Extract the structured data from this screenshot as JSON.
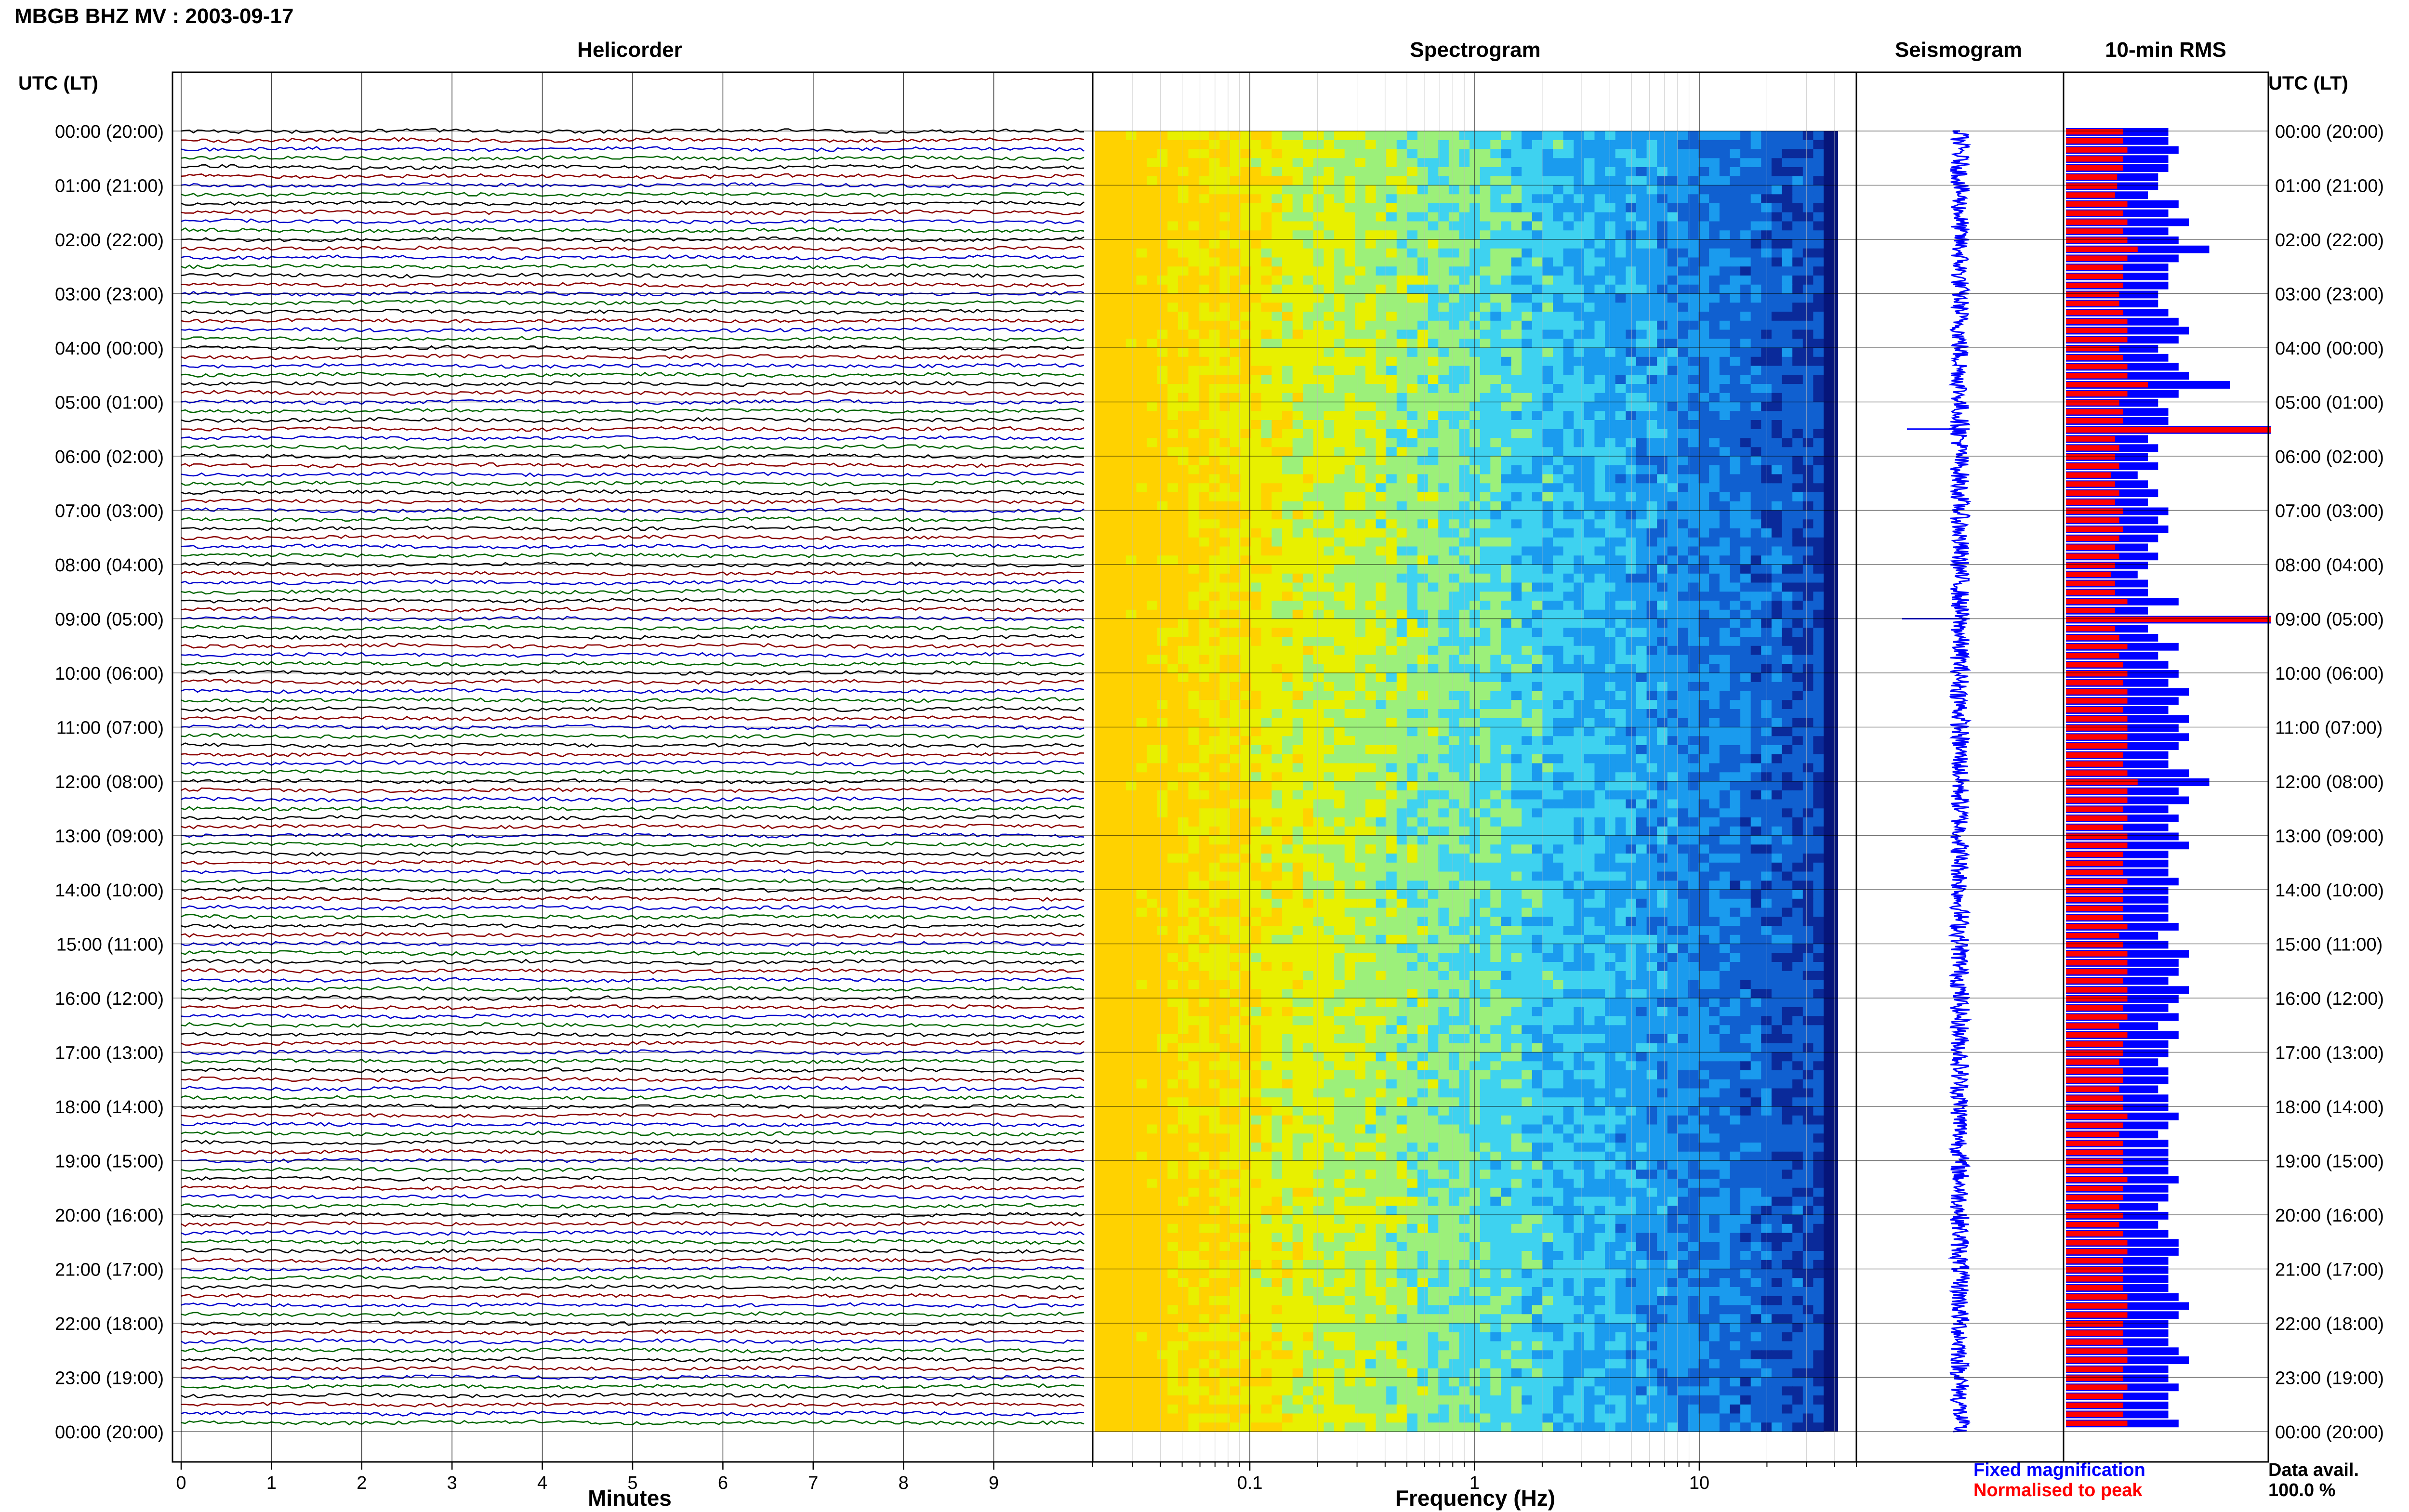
{
  "header": {
    "title": "MBGB BHZ MV : 2003-09-17",
    "time_axis_label": "UTC (LT)"
  },
  "panels": {
    "helicorder": "Helicorder",
    "spectrogram": "Spectrogram",
    "seismogram": "Seismogram",
    "rms": "10-min RMS"
  },
  "axis_labels": {
    "helicorder_x": "Minutes",
    "spectrogram_x": "Frequency (Hz)"
  },
  "legend": {
    "fixed_magnification": "Fixed magnification",
    "normalised_to_peak": "Normalised to peak",
    "data_avail_label": "Data avail.",
    "data_avail_value": "100.0 %"
  },
  "colors": {
    "helicorder_traces": [
      "#000000",
      "#8b0000",
      "#0000cc",
      "#006600"
    ],
    "fixed_magnification": "#0000ff",
    "normalised_to_peak": "#ff0000",
    "grid": "#000000",
    "spectrogram_colormap": [
      "#ffd200",
      "#e8f000",
      "#9cf07a",
      "#3ed2f0",
      "#1a9bee",
      "#1060d0",
      "#0a2a9a"
    ]
  },
  "chart_data": [
    {
      "type": "line",
      "name": "Helicorder",
      "title": "Helicorder",
      "xlabel": "Minutes",
      "xlim": [
        0,
        10
      ],
      "x_ticks": [
        "0",
        "1",
        "2",
        "3",
        "4",
        "5",
        "6",
        "7",
        "8",
        "9"
      ],
      "y_ticks": [
        "00:00 (20:00)",
        "01:00 (21:00)",
        "02:00 (22:00)",
        "03:00 (23:00)",
        "04:00 (00:00)",
        "05:00 (01:00)",
        "06:00 (02:00)",
        "07:00 (03:00)",
        "08:00 (04:00)",
        "09:00 (05:00)",
        "10:00 (06:00)",
        "11:00 (07:00)",
        "12:00 (08:00)",
        "13:00 (09:00)",
        "14:00 (10:00)",
        "15:00 (11:00)",
        "16:00 (12:00)",
        "17:00 (13:00)",
        "18:00 (14:00)",
        "19:00 (15:00)",
        "20:00 (16:00)",
        "21:00 (17:00)",
        "22:00 (18:00)",
        "23:00 (19:00)",
        "00:00 (20:00)"
      ],
      "traces_per_hour": 6,
      "trace_minutes": 10,
      "total_traces": 144,
      "grid": true
    },
    {
      "type": "heatmap",
      "name": "Spectrogram",
      "title": "Spectrogram",
      "xlabel": "Frequency (Hz)",
      "x_scale": "log",
      "xlim": [
        0.02,
        50
      ],
      "x_ticks": [
        "0.1",
        "1",
        "10"
      ],
      "x_tick_values": [
        0.1,
        1,
        10
      ],
      "rows": 144,
      "grid": true
    },
    {
      "type": "line",
      "name": "Seismogram",
      "title": "Seismogram",
      "orientation": "vertical",
      "grid": true
    },
    {
      "type": "bar",
      "name": "10-min RMS",
      "title": "10-min RMS",
      "orientation": "horizontal",
      "categories_count": 144,
      "series": [
        {
          "name": "Fixed magnification",
          "color": "#0000ff",
          "values": [
            0.5,
            0.5,
            0.55,
            0.5,
            0.5,
            0.45,
            0.45,
            0.4,
            0.55,
            0.5,
            0.6,
            0.5,
            0.55,
            0.7,
            0.55,
            0.5,
            0.5,
            0.5,
            0.45,
            0.45,
            0.5,
            0.55,
            0.6,
            0.55,
            0.45,
            0.5,
            0.55,
            0.6,
            0.8,
            0.55,
            0.45,
            0.5,
            0.5,
            1.0,
            0.4,
            0.45,
            0.4,
            0.45,
            0.35,
            0.4,
            0.45,
            0.4,
            0.5,
            0.45,
            0.5,
            0.45,
            0.4,
            0.45,
            0.4,
            0.35,
            0.4,
            0.4,
            0.55,
            0.4,
            1.0,
            0.4,
            0.45,
            0.55,
            0.45,
            0.5,
            0.55,
            0.5,
            0.6,
            0.55,
            0.5,
            0.6,
            0.55,
            0.6,
            0.55,
            0.5,
            0.5,
            0.6,
            0.7,
            0.55,
            0.6,
            0.5,
            0.55,
            0.5,
            0.55,
            0.6,
            0.5,
            0.5,
            0.5,
            0.55,
            0.5,
            0.5,
            0.5,
            0.5,
            0.55,
            0.45,
            0.5,
            0.6,
            0.55,
            0.55,
            0.5,
            0.6,
            0.55,
            0.5,
            0.55,
            0.45,
            0.55,
            0.5,
            0.5,
            0.45,
            0.5,
            0.5,
            0.45,
            0.5,
            0.5,
            0.55,
            0.5,
            0.45,
            0.5,
            0.5,
            0.5,
            0.5,
            0.55,
            0.5,
            0.5,
            0.45,
            0.5,
            0.45,
            0.5,
            0.55,
            0.55,
            0.5,
            0.5,
            0.5,
            0.5,
            0.55,
            0.6,
            0.55,
            0.5,
            0.5,
            0.5,
            0.55,
            0.6,
            0.5,
            0.5,
            0.55,
            0.5,
            0.5,
            0.5,
            0.55
          ]
        },
        {
          "name": "Normalised to peak",
          "color": "#ff0000",
          "values": [
            0.28,
            0.28,
            0.3,
            0.28,
            0.28,
            0.25,
            0.25,
            0.24,
            0.3,
            0.28,
            0.3,
            0.28,
            0.3,
            0.35,
            0.3,
            0.28,
            0.28,
            0.28,
            0.26,
            0.26,
            0.28,
            0.3,
            0.3,
            0.3,
            0.26,
            0.28,
            0.3,
            0.3,
            0.4,
            0.3,
            0.26,
            0.28,
            0.28,
            1.0,
            0.24,
            0.26,
            0.24,
            0.26,
            0.22,
            0.24,
            0.26,
            0.24,
            0.28,
            0.26,
            0.28,
            0.26,
            0.24,
            0.26,
            0.24,
            0.22,
            0.24,
            0.24,
            0.3,
            0.24,
            1.0,
            0.24,
            0.26,
            0.3,
            0.26,
            0.28,
            0.3,
            0.28,
            0.3,
            0.3,
            0.28,
            0.3,
            0.3,
            0.3,
            0.3,
            0.28,
            0.28,
            0.3,
            0.35,
            0.3,
            0.3,
            0.28,
            0.3,
            0.28,
            0.3,
            0.3,
            0.28,
            0.28,
            0.28,
            0.3,
            0.28,
            0.28,
            0.28,
            0.28,
            0.3,
            0.26,
            0.28,
            0.3,
            0.3,
            0.3,
            0.28,
            0.3,
            0.3,
            0.28,
            0.3,
            0.26,
            0.3,
            0.28,
            0.28,
            0.26,
            0.28,
            0.28,
            0.26,
            0.28,
            0.28,
            0.3,
            0.28,
            0.26,
            0.28,
            0.28,
            0.28,
            0.28,
            0.3,
            0.28,
            0.28,
            0.26,
            0.28,
            0.26,
            0.28,
            0.3,
            0.3,
            0.28,
            0.28,
            0.28,
            0.28,
            0.3,
            0.3,
            0.3,
            0.28,
            0.28,
            0.28,
            0.3,
            0.3,
            0.28,
            0.28,
            0.3,
            0.28,
            0.28,
            0.28,
            0.3
          ]
        }
      ]
    }
  ]
}
